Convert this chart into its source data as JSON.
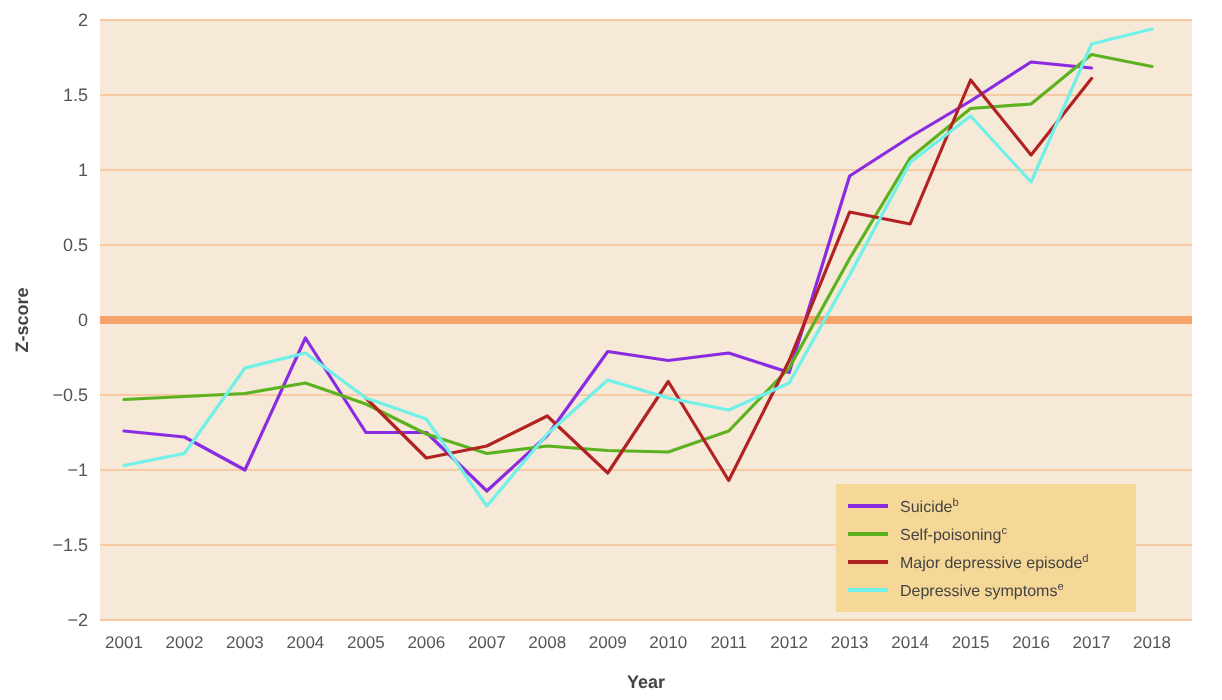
{
  "chart_data": {
    "type": "line",
    "xlabel": "Year",
    "ylabel": "Z-score",
    "categories": [
      "2001",
      "2002",
      "2003",
      "2004",
      "2005",
      "2006",
      "2007",
      "2008",
      "2009",
      "2010",
      "2011",
      "2012",
      "2013",
      "2014",
      "2015",
      "2016",
      "2017",
      "2018"
    ],
    "series": [
      {
        "name": "Suicide$^{b}$",
        "color": "#8a2be2",
        "values": [
          -0.74,
          -0.78,
          -1.0,
          -0.12,
          -0.75,
          -0.75,
          -1.14,
          -0.77,
          -0.21,
          -0.27,
          -0.22,
          -0.35,
          0.96,
          1.22,
          1.46,
          1.72,
          1.68,
          null
        ]
      },
      {
        "name": "Self-poisoning$^{c}$",
        "color": "#5cb21e",
        "values": [
          -0.53,
          -0.51,
          -0.49,
          -0.42,
          -0.56,
          -0.76,
          -0.89,
          -0.84,
          -0.87,
          -0.88,
          -0.74,
          -0.32,
          0.41,
          1.08,
          1.41,
          1.44,
          1.77,
          1.69
        ]
      },
      {
        "name": "Major depressive episode$^{d}$",
        "color": "#b22222",
        "values": [
          null,
          null,
          null,
          null,
          -0.52,
          -0.92,
          -0.84,
          -0.64,
          -1.02,
          -0.41,
          -1.07,
          -0.27,
          0.72,
          0.64,
          1.6,
          1.1,
          1.61,
          null
        ]
      },
      {
        "name": "Depressive symptoms$^{e}$",
        "color": "#6ff0e8",
        "values": [
          -0.97,
          -0.89,
          -0.32,
          -0.22,
          -0.52,
          -0.66,
          -1.24,
          -0.76,
          -0.4,
          -0.52,
          -0.6,
          -0.42,
          0.3,
          1.05,
          1.36,
          0.92,
          1.84,
          1.94
        ]
      }
    ],
    "ylim": [
      -2,
      2
    ],
    "yticks": [
      -2,
      -1.5,
      -1,
      -0.5,
      0,
      0.5,
      1,
      1.5,
      2
    ],
    "grid": "y",
    "legend": "bottom right",
    "ref_lines": [
      {
        "axis": "y",
        "value": 0,
        "color": "#f5a36a"
      }
    ]
  }
}
